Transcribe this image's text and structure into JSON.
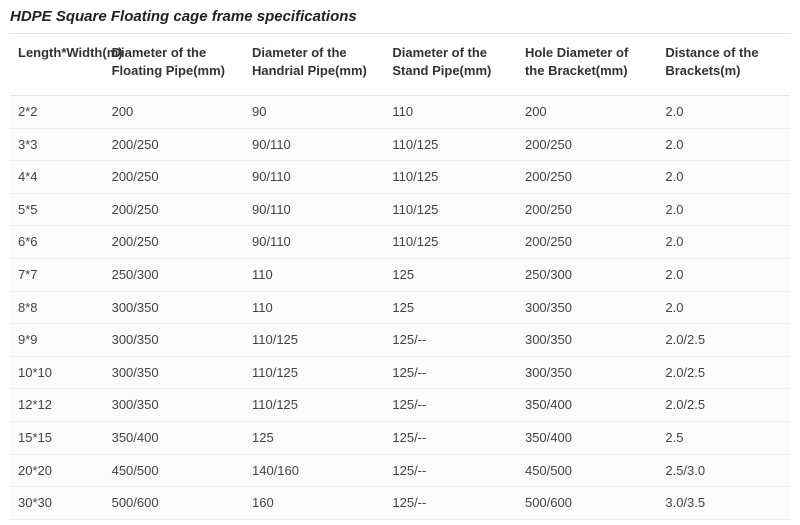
{
  "title": "HDPE Square Floating cage frame specifications",
  "table": {
    "type": "table",
    "background_color": "#ffffff",
    "row_background_color": "#fbfbfb",
    "border_color": "#e5e5e5",
    "row_border_color": "#eeeeee",
    "text_color": "#333333",
    "header_fontsize": 13,
    "cell_fontsize": 13,
    "columns": [
      "Length*Width(m)",
      "Diameter of the Floating Pipe(mm)",
      "Diameter of the Handrial Pipe(mm)",
      "Diameter of the Stand Pipe(mm)",
      "Hole Diameter of the Bracket(mm)",
      "Distance of the Brackets(m)"
    ],
    "column_widths_pct": [
      12,
      18,
      18,
      17,
      18,
      17
    ],
    "rows": [
      [
        "2*2",
        "200",
        "90",
        "110",
        "200",
        "2.0"
      ],
      [
        "3*3",
        "200/250",
        "90/110",
        "110/125",
        "200/250",
        "2.0"
      ],
      [
        "4*4",
        "200/250",
        "90/110",
        "110/125",
        "200/250",
        "2.0"
      ],
      [
        "5*5",
        "200/250",
        "90/110",
        "110/125",
        "200/250",
        "2.0"
      ],
      [
        "6*6",
        "200/250",
        "90/110",
        "110/125",
        "200/250",
        "2.0"
      ],
      [
        "7*7",
        "250/300",
        "110",
        "125",
        "250/300",
        "2.0"
      ],
      [
        "8*8",
        "300/350",
        "110",
        "125",
        "300/350",
        "2.0"
      ],
      [
        "9*9",
        "300/350",
        "110/125",
        "125/--",
        "300/350",
        "2.0/2.5"
      ],
      [
        "10*10",
        "300/350",
        "110/125",
        "125/--",
        "300/350",
        "2.0/2.5"
      ],
      [
        "12*12",
        "300/350",
        "110/125",
        "125/--",
        "350/400",
        "2.0/2.5"
      ],
      [
        "15*15",
        "350/400",
        "125",
        "125/--",
        "350/400",
        "2.5"
      ],
      [
        "20*20",
        "450/500",
        "140/160",
        "125/--",
        "450/500",
        "2.5/3.0"
      ],
      [
        "30*30",
        "500/600",
        "160",
        "125/--",
        "500/600",
        "3.0/3.5"
      ]
    ]
  }
}
